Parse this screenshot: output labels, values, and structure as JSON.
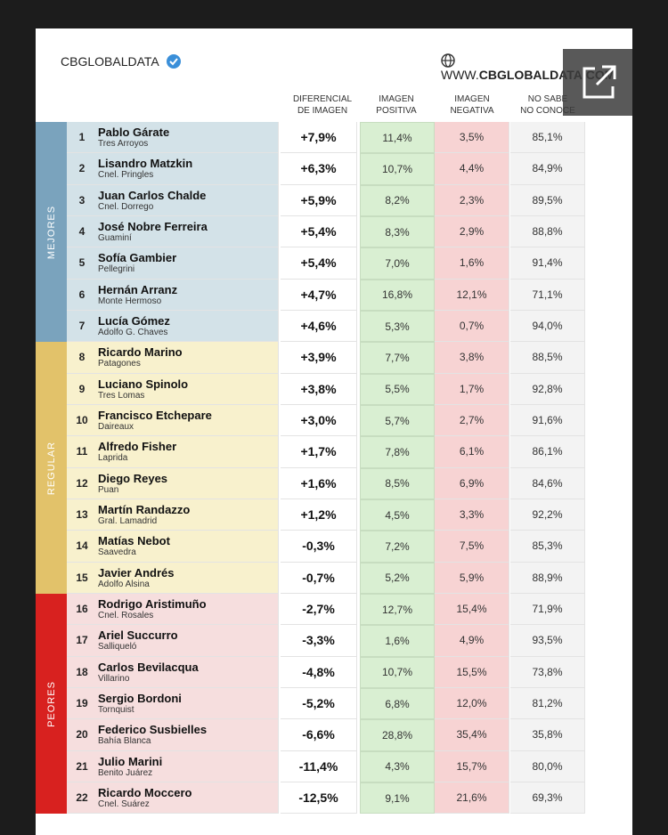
{
  "header": {
    "brand": "CBGLOBALDATA",
    "website_prefix": "WWW.",
    "website_domain": "CBGLOBALDATA.COM"
  },
  "columns": [
    [
      "DIFERENCIAL",
      "DE IMAGEN"
    ],
    [
      "IMAGEN",
      "POSITIVA"
    ],
    [
      "IMAGEN",
      "NEGATIVA"
    ],
    [
      "NO SABE",
      "NO CONOCE"
    ]
  ],
  "groups": [
    {
      "label": "MEJORES",
      "rows": [
        [
          "1",
          "Pablo Gárate",
          "Tres Arroyos",
          "+7,9%",
          "11,4%",
          "3,5%",
          "85,1%"
        ],
        [
          "2",
          "Lisandro Matzkin",
          "Cnel. Pringles",
          "+6,3%",
          "10,7%",
          "4,4%",
          "84,9%"
        ],
        [
          "3",
          "Juan Carlos Chalde",
          "Cnel. Dorrego",
          "+5,9%",
          "8,2%",
          "2,3%",
          "89,5%"
        ],
        [
          "4",
          "José Nobre Ferreira",
          "Guaminí",
          "+5,4%",
          "8,3%",
          "2,9%",
          "88,8%"
        ],
        [
          "5",
          "Sofía Gambier",
          "Pellegrini",
          "+5,4%",
          "7,0%",
          "1,6%",
          "91,4%"
        ],
        [
          "6",
          "Hernán Arranz",
          "Monte Hermoso",
          "+4,7%",
          "16,8%",
          "12,1%",
          "71,1%"
        ],
        [
          "7",
          "Lucía Gómez",
          "Adolfo G. Chaves",
          "+4,6%",
          "5,3%",
          "0,7%",
          "94,0%"
        ]
      ]
    },
    {
      "label": "REGULAR",
      "rows": [
        [
          "8",
          "Ricardo Marino",
          "Patagones",
          "+3,9%",
          "7,7%",
          "3,8%",
          "88,5%"
        ],
        [
          "9",
          "Luciano Spinolo",
          "Tres Lomas",
          "+3,8%",
          "5,5%",
          "1,7%",
          "92,8%"
        ],
        [
          "10",
          "Francisco Etchepare",
          "Daireaux",
          "+3,0%",
          "5,7%",
          "2,7%",
          "91,6%"
        ],
        [
          "11",
          "Alfredo Fisher",
          "Laprida",
          "+1,7%",
          "7,8%",
          "6,1%",
          "86,1%"
        ],
        [
          "12",
          "Diego Reyes",
          "Puan",
          "+1,6%",
          "8,5%",
          "6,9%",
          "84,6%"
        ],
        [
          "13",
          "Martín Randazzo",
          "Gral. Lamadrid",
          "+1,2%",
          "4,5%",
          "3,3%",
          "92,2%"
        ],
        [
          "14",
          "Matías Nebot",
          "Saavedra",
          "-0,3%",
          "7,2%",
          "7,5%",
          "85,3%"
        ],
        [
          "15",
          "Javier Andrés",
          "Adolfo Alsina",
          "-0,7%",
          "5,2%",
          "5,9%",
          "88,9%"
        ]
      ]
    },
    {
      "label": "PEORES",
      "rows": [
        [
          "16",
          "Rodrigo Aristimuño",
          "Cnel. Rosales",
          "-2,7%",
          "12,7%",
          "15,4%",
          "71,9%"
        ],
        [
          "17",
          "Ariel Succurro",
          "Salliqueló",
          "-3,3%",
          "1,6%",
          "4,9%",
          "93,5%"
        ],
        [
          "18",
          "Carlos Bevilacqua",
          "Villarino",
          "-4,8%",
          "10,7%",
          "15,5%",
          "73,8%"
        ],
        [
          "19",
          "Sergio Bordoni",
          "Tornquist",
          "-5,2%",
          "6,8%",
          "12,0%",
          "81,2%"
        ],
        [
          "20",
          "Federico Susbielles",
          "Bahía Blanca",
          "-6,6%",
          "28,8%",
          "35,4%",
          "35,8%"
        ],
        [
          "21",
          "Julio Marini",
          "Benito Juárez",
          "-11,4%",
          "4,3%",
          "15,7%",
          "80,0%"
        ],
        [
          "22",
          "Ricardo Moccero",
          "Cnel. Suárez",
          "-12,5%",
          "9,1%",
          "21,6%",
          "69,3%"
        ]
      ]
    }
  ]
}
